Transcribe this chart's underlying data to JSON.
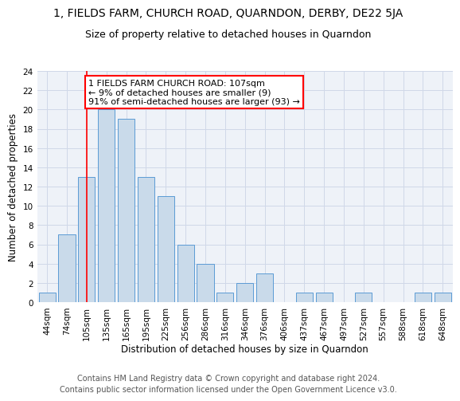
{
  "title_line1": "1, FIELDS FARM, CHURCH ROAD, QUARNDON, DERBY, DE22 5JA",
  "title_line2": "Size of property relative to detached houses in Quarndon",
  "xlabel": "Distribution of detached houses by size in Quarndon",
  "ylabel": "Number of detached properties",
  "bar_labels": [
    "44sqm",
    "74sqm",
    "105sqm",
    "135sqm",
    "165sqm",
    "195sqm",
    "225sqm",
    "256sqm",
    "286sqm",
    "316sqm",
    "346sqm",
    "376sqm",
    "406sqm",
    "437sqm",
    "467sqm",
    "497sqm",
    "527sqm",
    "557sqm",
    "588sqm",
    "618sqm",
    "648sqm"
  ],
  "bar_values": [
    1,
    7,
    13,
    20,
    19,
    13,
    11,
    6,
    4,
    1,
    2,
    3,
    0,
    1,
    1,
    0,
    1,
    0,
    0,
    1,
    1
  ],
  "bar_color": "#c9daea",
  "bar_edge_color": "#5b9bd5",
  "grid_color": "#d0d8e8",
  "background_color": "#eef2f8",
  "annotation_line1": "1 FIELDS FARM CHURCH ROAD: 107sqm",
  "annotation_line2": "← 9% of detached houses are smaller (9)",
  "annotation_line3": "91% of semi-detached houses are larger (93) →",
  "annotation_box_color": "white",
  "annotation_box_edge": "red",
  "red_line_x": 2.5,
  "ylim": [
    0,
    24
  ],
  "yticks": [
    0,
    2,
    4,
    6,
    8,
    10,
    12,
    14,
    16,
    18,
    20,
    22,
    24
  ],
  "footer_line1": "Contains HM Land Registry data © Crown copyright and database right 2024.",
  "footer_line2": "Contains public sector information licensed under the Open Government Licence v3.0.",
  "title_fontsize": 10,
  "subtitle_fontsize": 9,
  "axis_label_fontsize": 8.5,
  "tick_fontsize": 7.5,
  "annotation_fontsize": 8,
  "footer_fontsize": 7
}
